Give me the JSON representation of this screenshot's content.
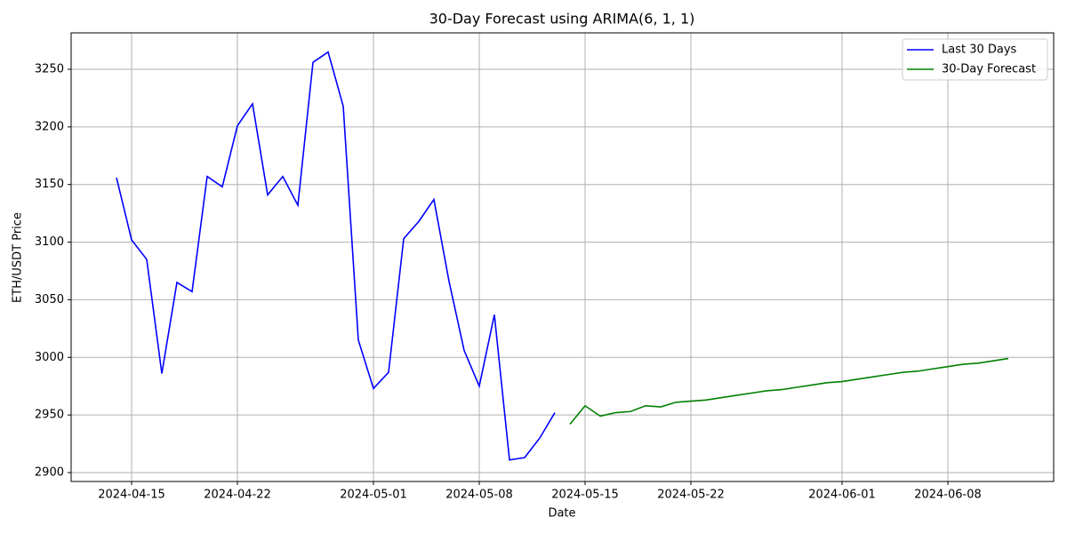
{
  "chart_data": {
    "type": "line",
    "title": "30-Day Forecast using ARIMA(6, 1, 1)",
    "x_label": "Date",
    "y_label": "ETH/USDT Price",
    "series": [
      {
        "name": "Last 30 Days",
        "color": "#0000ff",
        "x": [
          "2024-04-14",
          "2024-04-15",
          "2024-04-16",
          "2024-04-17",
          "2024-04-18",
          "2024-04-19",
          "2024-04-20",
          "2024-04-21",
          "2024-04-22",
          "2024-04-23",
          "2024-04-24",
          "2024-04-25",
          "2024-04-26",
          "2024-04-27",
          "2024-04-28",
          "2024-04-29",
          "2024-04-30",
          "2024-05-01",
          "2024-05-02",
          "2024-05-03",
          "2024-05-04",
          "2024-05-05",
          "2024-05-06",
          "2024-05-07",
          "2024-05-08",
          "2024-05-09",
          "2024-05-10",
          "2024-05-11",
          "2024-05-12",
          "2024-05-13"
        ],
        "values": [
          3156,
          3102,
          3085,
          2986,
          3065,
          3057,
          3157,
          3148,
          3201,
          3220,
          3141,
          3157,
          3132,
          3256,
          3265,
          3218,
          3015,
          2973,
          2987,
          3103,
          3118,
          3137,
          3066,
          3006,
          2975,
          3037,
          2911,
          2913,
          2930,
          2952
        ]
      },
      {
        "name": "30-Day Forecast",
        "color": "#008000",
        "x": [
          "2024-05-14",
          "2024-05-15",
          "2024-05-16",
          "2024-05-17",
          "2024-05-18",
          "2024-05-19",
          "2024-05-20",
          "2024-05-21",
          "2024-05-22",
          "2024-05-23",
          "2024-05-24",
          "2024-05-25",
          "2024-05-26",
          "2024-05-27",
          "2024-05-28",
          "2024-05-29",
          "2024-05-30",
          "2024-05-31",
          "2024-06-01",
          "2024-06-02",
          "2024-06-03",
          "2024-06-04",
          "2024-06-05",
          "2024-06-06",
          "2024-06-07",
          "2024-06-08",
          "2024-06-09",
          "2024-06-10",
          "2024-06-11",
          "2024-06-12"
        ],
        "values": [
          2942,
          2958,
          2949,
          2952,
          2953,
          2958,
          2957,
          2961,
          2962,
          2963,
          2965,
          2967,
          2969,
          2971,
          2972,
          2974,
          2976,
          2978,
          2979,
          2981,
          2983,
          2985,
          2987,
          2988,
          2990,
          2992,
          2994,
          2995,
          2997,
          2999
        ]
      }
    ],
    "xlim": [
      "2024-04-11",
      "2024-06-15"
    ],
    "xticks": [
      "2024-04-15",
      "2024-04-22",
      "2024-05-01",
      "2024-05-08",
      "2024-05-15",
      "2024-05-22",
      "2024-06-01",
      "2024-06-08"
    ],
    "ylim": [
      2892.3,
      3281.6
    ],
    "yticks": [
      2900,
      2950,
      3000,
      3050,
      3100,
      3150,
      3200,
      3250
    ],
    "grid": true,
    "legend": "upper right"
  }
}
